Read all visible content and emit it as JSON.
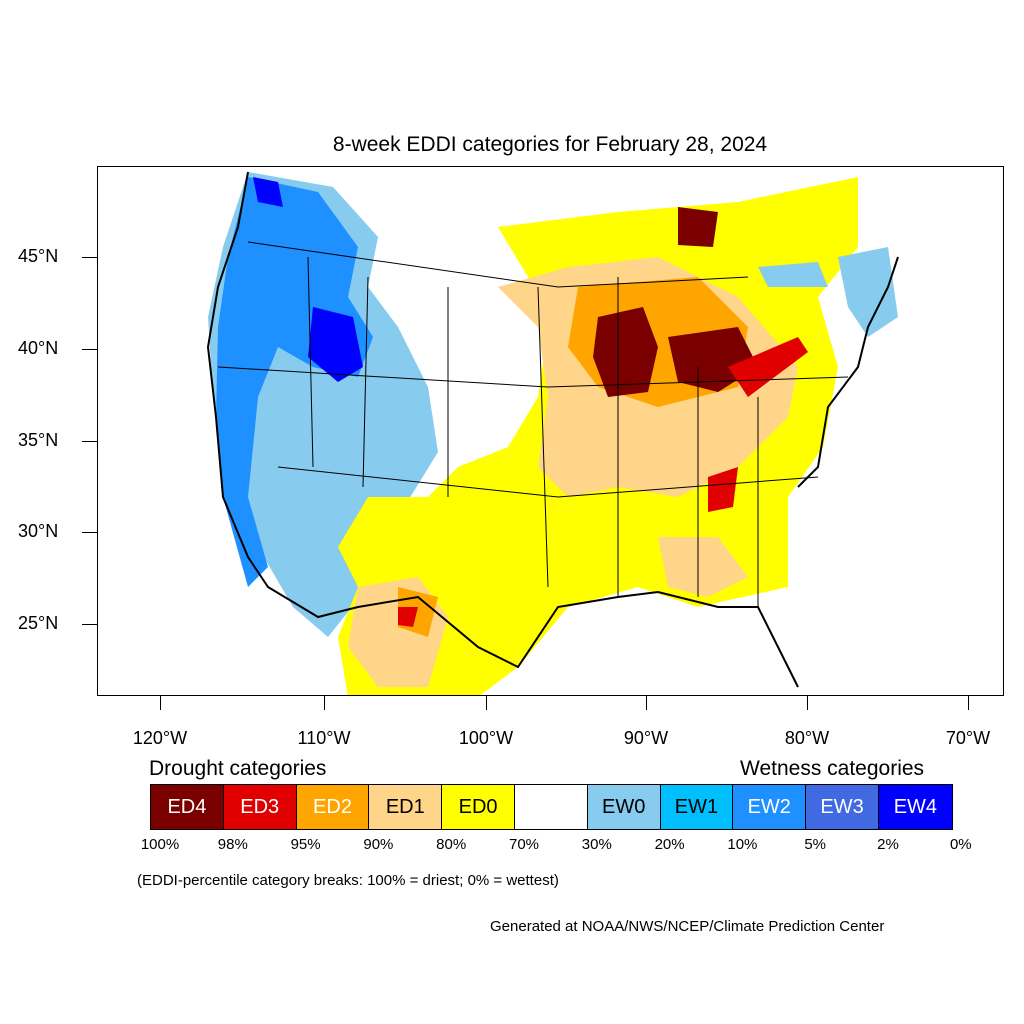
{
  "title": "8-week EDDI categories for February 28, 2024",
  "lat_labels": [
    "45°N",
    "40°N",
    "35°N",
    "30°N",
    "25°N"
  ],
  "lon_labels": [
    "120°W",
    "110°W",
    "100°W",
    "90°W",
    "80°W",
    "70°W"
  ],
  "drought_heading": "Drought categories",
  "wetness_heading": "Wetness categories",
  "legend": [
    {
      "label": "ED4",
      "color": "#7a0000",
      "text_color": "#ffffff"
    },
    {
      "label": "ED3",
      "color": "#e00000",
      "text_color": "#ffffff"
    },
    {
      "label": "ED2",
      "color": "#ffa500",
      "text_color": "#ffffff"
    },
    {
      "label": "ED1",
      "color": "#ffd58a",
      "text_color": "#000000"
    },
    {
      "label": "ED0",
      "color": "#ffff00",
      "text_color": "#000000"
    },
    {
      "label": "",
      "color": "#ffffff",
      "text_color": "#000000"
    },
    {
      "label": "EW0",
      "color": "#87cbee",
      "text_color": "#000000"
    },
    {
      "label": "EW1",
      "color": "#00bfff",
      "text_color": "#000000"
    },
    {
      "label": "EW2",
      "color": "#1e90ff",
      "text_color": "#ffffff"
    },
    {
      "label": "EW3",
      "color": "#4169e1",
      "text_color": "#ffffff"
    },
    {
      "label": "EW4",
      "color": "#0000ff",
      "text_color": "#ffffff"
    }
  ],
  "percent_labels": [
    "100%",
    "98%",
    "95%",
    "90%",
    "80%",
    "70%",
    "30%",
    "20%",
    "10%",
    "5%",
    "2%",
    "0%"
  ],
  "note": "(EDDI-percentile category breaks: 100% = driest; 0% = wettest)",
  "credit": "Generated at NOAA/NWS/NCEP/Climate Prediction Center"
}
